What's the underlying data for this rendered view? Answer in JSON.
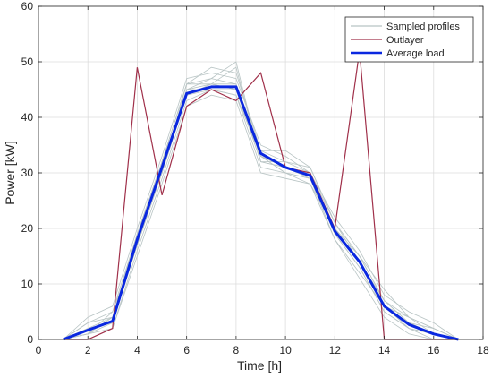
{
  "chart_data": {
    "type": "line",
    "title": "",
    "xlabel": "Time [h]",
    "ylabel": "Power [kW]",
    "xlim": [
      0,
      18
    ],
    "ylim": [
      0,
      60
    ],
    "xticks": [
      0,
      2,
      4,
      6,
      8,
      10,
      12,
      14,
      16,
      18
    ],
    "yticks": [
      0,
      10,
      20,
      30,
      40,
      50,
      60
    ],
    "grid": true,
    "legend_position": "top-right",
    "x": [
      1,
      2,
      3,
      4,
      5,
      6,
      7,
      8,
      9,
      10,
      11,
      12,
      13,
      14,
      15,
      16,
      17
    ],
    "series": [
      {
        "name": "Sampled profiles",
        "color": "#b8c4c4",
        "width": 0.8,
        "samples": [
          [
            0,
            2,
            3,
            18,
            31,
            45,
            46,
            45,
            33,
            31,
            30,
            20,
            14,
            6,
            3,
            1,
            0
          ],
          [
            0,
            3,
            5,
            19,
            32,
            46,
            47,
            46,
            34,
            32,
            31,
            21,
            15,
            7,
            4,
            2,
            0
          ],
          [
            0,
            1,
            2,
            16,
            29,
            43,
            45,
            44,
            31,
            30,
            29,
            19,
            13,
            5,
            2,
            1,
            0
          ],
          [
            0,
            4,
            6,
            20,
            33,
            47,
            48,
            47,
            35,
            33,
            30,
            22,
            16,
            8,
            5,
            3,
            0
          ],
          [
            0,
            1,
            3,
            17,
            30,
            44,
            46,
            49,
            32,
            31,
            29,
            18,
            12,
            6,
            2,
            0,
            0
          ],
          [
            0,
            2,
            4,
            18,
            31,
            45,
            45,
            44,
            33,
            30,
            28,
            20,
            14,
            7,
            3,
            1,
            0
          ],
          [
            0,
            0,
            2,
            15,
            28,
            42,
            44,
            43,
            30,
            29,
            28,
            18,
            11,
            4,
            1,
            0,
            0
          ],
          [
            0,
            3,
            4,
            19,
            32,
            46,
            49,
            48,
            34,
            34,
            31,
            21,
            15,
            9,
            4,
            2,
            0
          ],
          [
            0,
            2,
            3,
            18,
            30,
            44,
            46,
            46,
            33,
            31,
            30,
            20,
            14,
            6,
            3,
            1,
            0
          ],
          [
            0,
            1,
            5,
            17,
            31,
            45,
            47,
            50,
            32,
            32,
            30,
            19,
            13,
            5,
            2,
            1,
            0
          ],
          [
            0,
            2,
            3,
            19,
            30,
            46,
            46,
            45,
            33,
            30,
            29,
            20,
            15,
            7,
            3,
            2,
            0
          ],
          [
            0,
            1,
            4,
            17,
            32,
            44,
            45,
            45,
            32,
            31,
            30,
            21,
            14,
            6,
            4,
            1,
            0
          ]
        ]
      },
      {
        "name": "Outlayer",
        "color": "#a0304a",
        "width": 1.2,
        "values": [
          0,
          0,
          2,
          49,
          26,
          42,
          45,
          43,
          48,
          31,
          30,
          20,
          52,
          0,
          0,
          0,
          0
        ]
      },
      {
        "name": "Average load",
        "color": "#0a28e0",
        "width": 3,
        "values": [
          0,
          1.7,
          3.3,
          18,
          31,
          44.3,
          45.5,
          45.5,
          33.5,
          31,
          29.5,
          19.5,
          14,
          6,
          2.7,
          1,
          0
        ]
      }
    ]
  }
}
